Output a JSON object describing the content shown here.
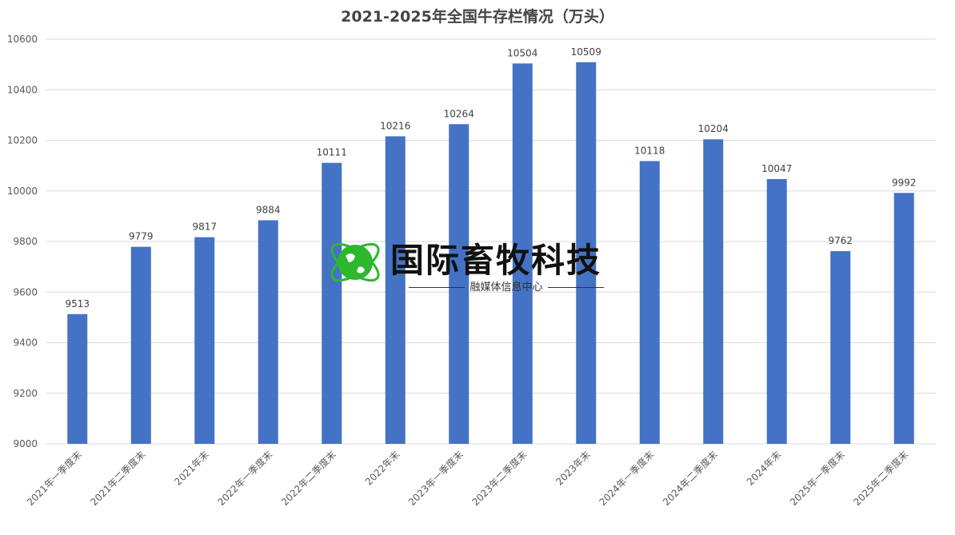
{
  "chart_data": {
    "type": "bar",
    "title": "2021-2025年全国牛存栏情况（万头）",
    "categories": [
      "2021年一季度末",
      "2021年二季度末",
      "2021年末",
      "2022年一季度末",
      "2022年二季度末",
      "2022年末",
      "2023年一季度末",
      "2023年二季度末",
      "2023年末",
      "2024年一季度末",
      "2024年二季度末",
      "2024年末",
      "2025年一季度末",
      "2025年二季度末"
    ],
    "values": [
      9513,
      9779,
      9817,
      9884,
      10111,
      10216,
      10264,
      10504,
      10509,
      10118,
      10204,
      10047,
      9762,
      9992
    ],
    "ylim": [
      9000,
      10600
    ],
    "yticks": [
      9000,
      9200,
      9400,
      9600,
      9800,
      10000,
      10200,
      10400,
      10600
    ],
    "grid": true,
    "bar_color": "#4472C4",
    "data_labels": true
  },
  "watermark": {
    "title": "国际畜牧科技",
    "subtitle": "融媒体信息中心",
    "logo_icon": "globe-icon",
    "logo_color": "#2DB82D"
  }
}
